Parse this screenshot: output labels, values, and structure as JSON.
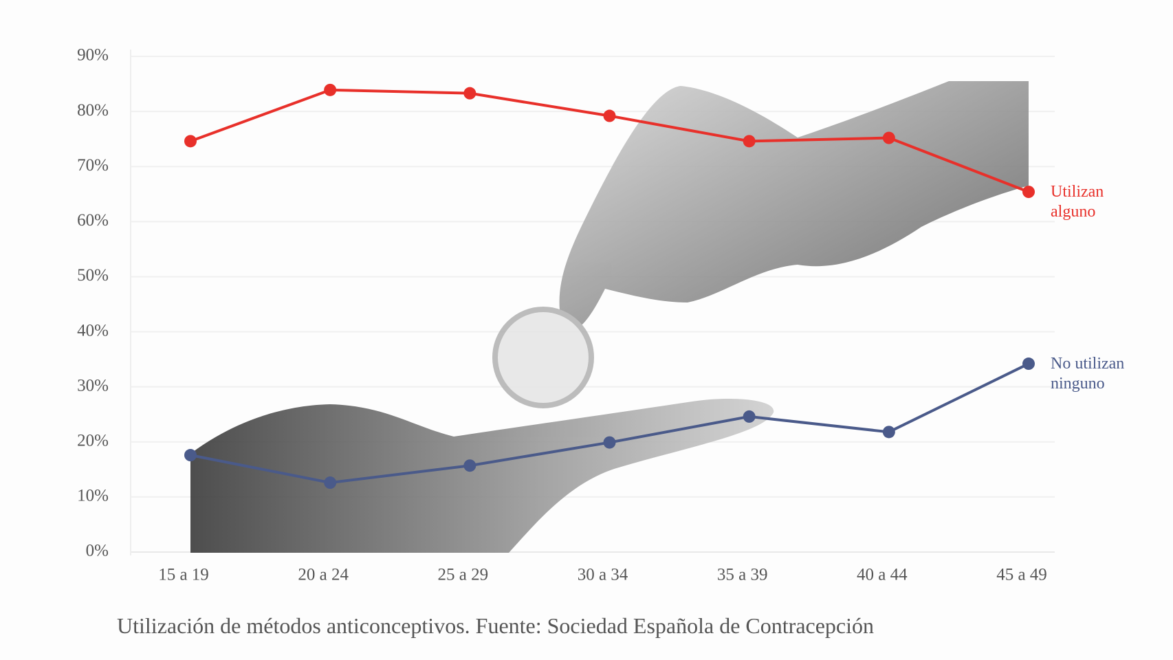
{
  "chart_data": {
    "type": "line",
    "caption": "Utilización de métodos anticonceptivos. Fuente: Sociedad Española de Contracepción",
    "categories": [
      "15 a 19",
      "20 a 24",
      "25 a 29",
      "30 a 34",
      "35 a 39",
      "40 a 44",
      "45 a 49"
    ],
    "series": [
      {
        "name": "Utilizan alguno",
        "color": "#e8302a",
        "values": [
          74.6,
          83.9,
          83.3,
          79.2,
          74.6,
          75.2,
          65.4
        ]
      },
      {
        "name": "No utilizan ninguno",
        "color": "#4a5a8a",
        "values": [
          17.6,
          12.6,
          15.7,
          19.9,
          24.6,
          21.8,
          34.2
        ]
      }
    ],
    "ylim": [
      0,
      90
    ],
    "yticks": [
      {
        "value": 0,
        "label": "0%"
      },
      {
        "value": 10,
        "label": "10%"
      },
      {
        "value": 20,
        "label": "20%"
      },
      {
        "value": 30,
        "label": "30%"
      },
      {
        "value": 40,
        "label": "40%"
      },
      {
        "value": 50,
        "label": "50%"
      },
      {
        "value": 60,
        "label": "60%"
      },
      {
        "value": 70,
        "label": "70%"
      },
      {
        "value": 80,
        "label": "80%"
      },
      {
        "value": 90,
        "label": "90%"
      }
    ],
    "grid": true
  }
}
